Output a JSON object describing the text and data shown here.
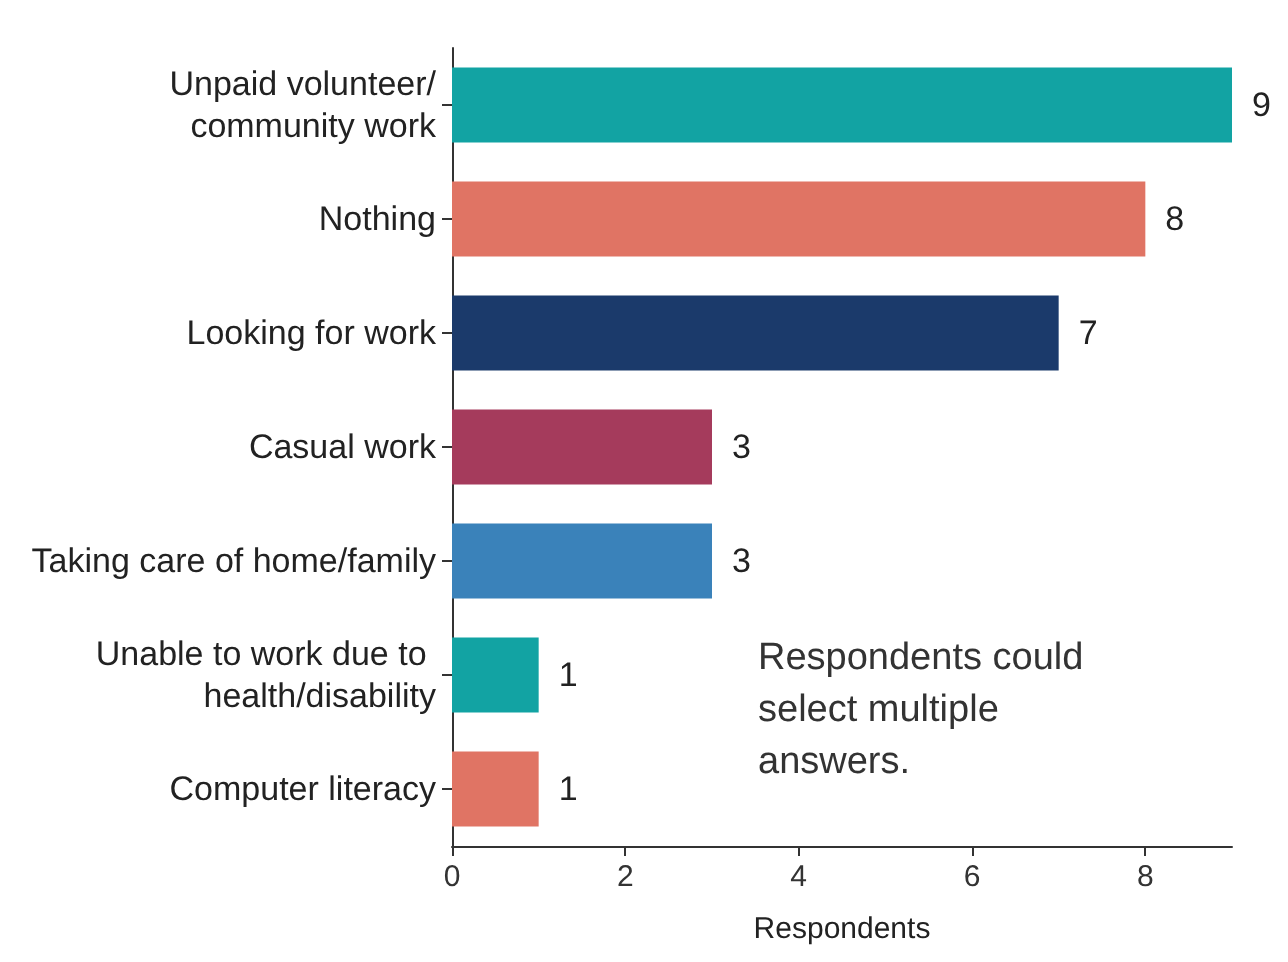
{
  "chart_data": {
    "type": "bar",
    "orientation": "horizontal",
    "xlabel": "Respondents",
    "categories": [
      "Unpaid volunteer/community work",
      "Nothing",
      "Looking for work",
      "Casual work",
      "Taking care of home/family",
      "Unable to work due to health/disability",
      "Computer literacy"
    ],
    "values": [
      9,
      8,
      7,
      3,
      3,
      1,
      1
    ],
    "colors": [
      "#12a3a3",
      "#e07464",
      "#1b3a6b",
      "#a53b5c",
      "#3a82ba",
      "#12a3a3",
      "#e07464"
    ],
    "xlim": [
      0,
      9
    ],
    "xticks": [
      0,
      2,
      4,
      6,
      8
    ],
    "grid": false,
    "data_labels": true,
    "annotations": [
      "Respondents could select multiple answers."
    ]
  }
}
